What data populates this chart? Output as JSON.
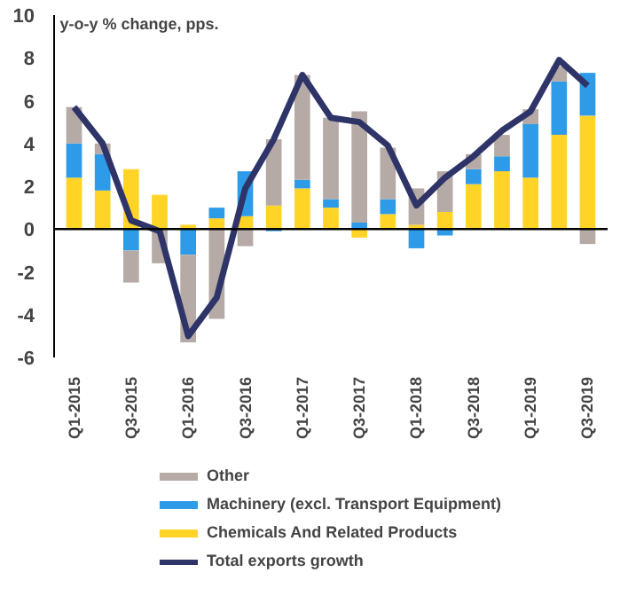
{
  "chart_data": {
    "type": "bar",
    "stacked": true,
    "ylabel": "y-o-y % change, pps.",
    "categories": [
      "Q1-2015",
      null,
      "Q3-2015",
      null,
      "Q1-2016",
      null,
      "Q3-2016",
      null,
      "Q1-2017",
      null,
      "Q3-2017",
      null,
      "Q1-2018",
      null,
      "Q3-2018",
      null,
      "Q1-2019",
      null,
      "Q3-2019"
    ],
    "series": [
      {
        "name": "Chemicals And Related Products",
        "color": "#ffd426",
        "values": [
          2.4,
          1.8,
          2.8,
          1.6,
          0.2,
          0.5,
          0.6,
          1.1,
          1.9,
          1.0,
          -0.4,
          0.7,
          0.2,
          0.8,
          2.1,
          2.7,
          2.4,
          4.4,
          5.3
        ]
      },
      {
        "name": "Machinery (excl. Transport Equipment)",
        "color": "#2e9be8",
        "values": [
          1.6,
          1.7,
          -1.0,
          null,
          -1.2,
          0.5,
          2.1,
          -0.1,
          0.4,
          0.4,
          0.3,
          0.7,
          -0.9,
          -0.3,
          0.7,
          0.7,
          2.5,
          2.5,
          2.0
        ]
      },
      {
        "name": "Other",
        "color": "#b5aaa5",
        "values": [
          1.7,
          0.5,
          -1.5,
          -1.6,
          -4.1,
          -4.2,
          -0.8,
          3.1,
          4.9,
          3.8,
          5.2,
          2.4,
          1.7,
          1.9,
          0.7,
          1.0,
          0.7,
          0.7,
          -0.7
        ]
      },
      {
        "name": "Total exports growth",
        "type": "line",
        "color": "#2e3467",
        "values": [
          5.7,
          4.0,
          0.4,
          -0.1,
          -5.0,
          -3.2,
          1.9,
          4.2,
          7.2,
          5.2,
          5.0,
          3.9,
          1.1,
          2.4,
          3.4,
          4.6,
          5.5,
          7.9,
          6.7
        ]
      }
    ],
    "ylim": [
      -6,
      10
    ],
    "yticks": [
      -6,
      -4,
      -2,
      0,
      2,
      4,
      6,
      8,
      10
    ],
    "ref_lines": [
      {
        "axis": "y",
        "value": 0,
        "color": "#000000"
      }
    ],
    "grid": false,
    "legend": "bottom",
    "marker": "none",
    "line_style": "solid"
  }
}
